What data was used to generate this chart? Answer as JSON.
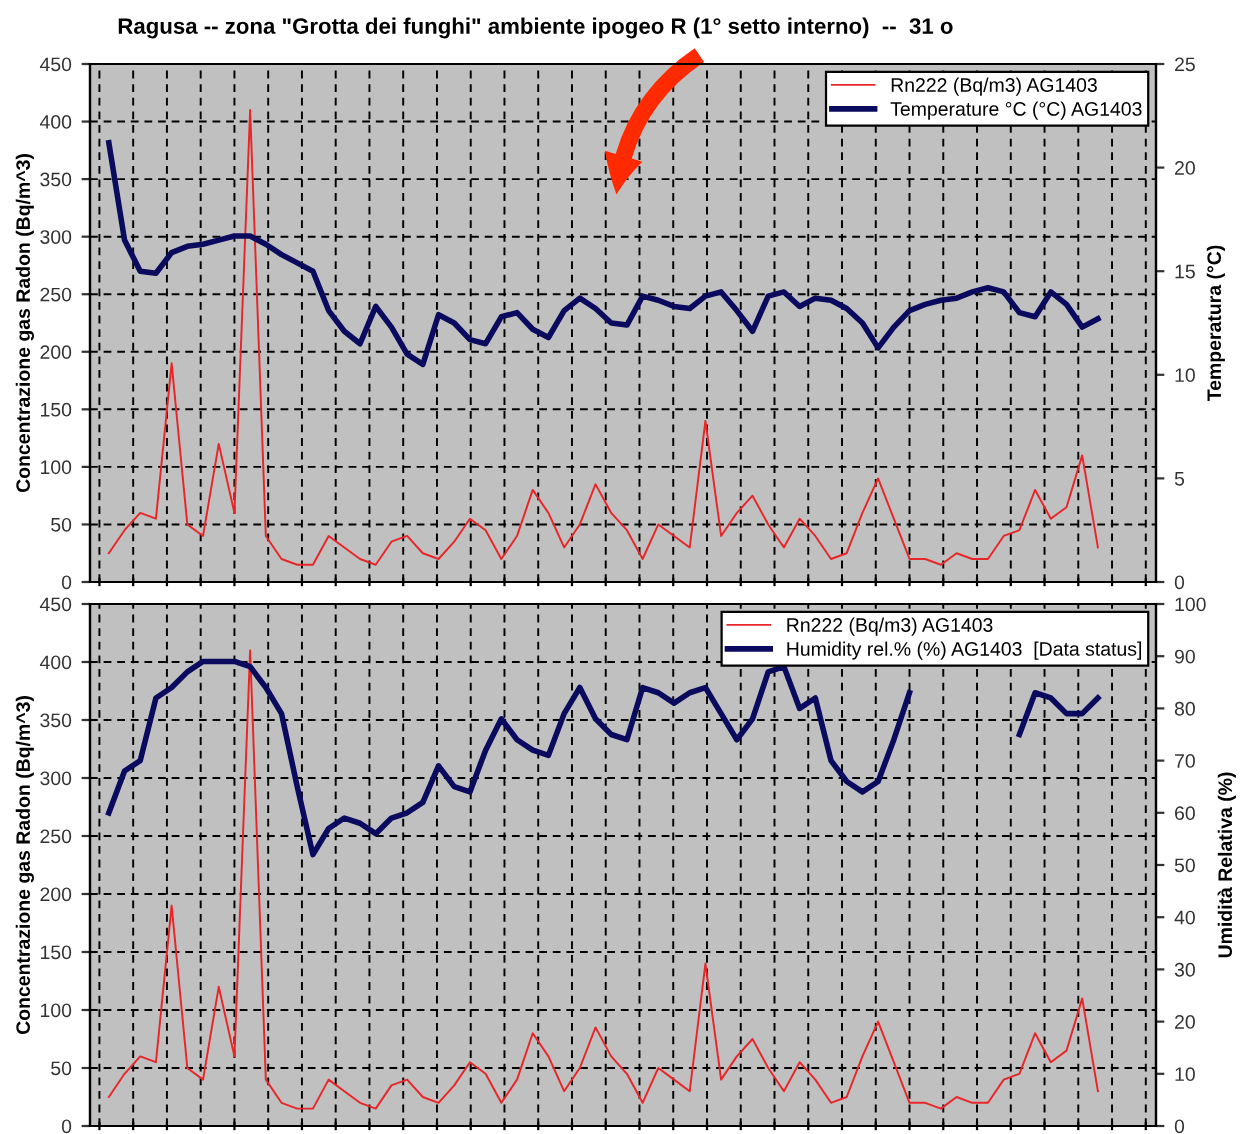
{
  "chart_data": [
    {
      "type": "line",
      "title": "Ragusa -- zona \"Grotta dei funghi\" ambiente ipogeo R (1° setto interno)  --  31 o",
      "ylabel": "Concentrazione gas Radon (Bq/m^3)",
      "y2label": "Temperatura (°C)",
      "categories": [
        null,
        null,
        null,
        null,
        null,
        null,
        null,
        null,
        null,
        null,
        null,
        null,
        null,
        null,
        null,
        null,
        null,
        null,
        null,
        null,
        null,
        null,
        null,
        null,
        null,
        null,
        null,
        null,
        null,
        null,
        null,
        null,
        null,
        null,
        null,
        null,
        null,
        null,
        null,
        null,
        null,
        null,
        null,
        null,
        null,
        null,
        null,
        null,
        null,
        null,
        null,
        null,
        null,
        null,
        null,
        null,
        null,
        null,
        null,
        null,
        null,
        null,
        null,
        null
      ],
      "series": [
        {
          "name": "Rn222 (Bq/m3) AG1403",
          "color": "#e8262a",
          "values": [
            25,
            45,
            60,
            55,
            190,
            50,
            40,
            120,
            60,
            410,
            40,
            20,
            15,
            15,
            40,
            30,
            20,
            15,
            35,
            40,
            25,
            20,
            35,
            55,
            45,
            20,
            40,
            80,
            60,
            30,
            50,
            85,
            60,
            45,
            20,
            50,
            40,
            30,
            140,
            40,
            60,
            75,
            50,
            30,
            55,
            40,
            20,
            25,
            60,
            90,
            55,
            20,
            20,
            15,
            25,
            20,
            20,
            40,
            45,
            80,
            55,
            65,
            110,
            30
          ]
        },
        {
          "name": "Temperature °C (°C) AG1403",
          "color": "#0a0a5e",
          "axis": "y2",
          "values": [
            21.2,
            16.5,
            15.0,
            14.9,
            15.9,
            16.2,
            16.3,
            16.5,
            16.7,
            16.7,
            16.3,
            15.8,
            15.4,
            15.0,
            13.1,
            12.1,
            11.5,
            13.3,
            12.3,
            11.0,
            10.5,
            12.9,
            12.5,
            11.7,
            11.5,
            12.8,
            13.0,
            12.2,
            11.8,
            13.1,
            13.7,
            13.2,
            12.5,
            12.4,
            13.8,
            13.6,
            13.3,
            13.2,
            13.8,
            14.0,
            13.1,
            12.1,
            13.8,
            14.0,
            13.3,
            13.7,
            13.6,
            13.2,
            12.5,
            11.3,
            12.3,
            13.1,
            13.4,
            13.6,
            13.7,
            14.0,
            14.2,
            14.0,
            13.0,
            12.8,
            14.0,
            13.4,
            12.3,
            12.7
          ]
        }
      ],
      "ylim": [
        0,
        450
      ],
      "yticks": [
        0,
        50,
        100,
        150,
        200,
        250,
        300,
        350,
        400,
        450
      ],
      "y2lim": [
        0,
        25
      ],
      "y2ticks": [
        0,
        5,
        10,
        15,
        20,
        25
      ],
      "grid": true,
      "legend": "top right",
      "tick_labels": "y",
      "line_style": "solid"
    },
    {
      "type": "line",
      "ylabel": "Concentrazione gas Radon (Bq/m^3)",
      "y2label": "Umidità Relativa (%)",
      "categories": [
        null,
        null,
        null,
        null,
        null,
        null,
        null,
        null,
        null,
        null,
        null,
        null,
        null,
        null,
        null,
        null,
        null,
        null,
        null,
        null,
        null,
        null,
        null,
        null,
        null,
        null,
        null,
        null,
        null,
        null,
        null,
        null,
        null,
        null,
        null,
        null,
        null,
        null,
        null,
        null,
        null,
        null,
        null,
        null,
        null,
        null,
        null,
        null,
        null,
        null,
        null,
        null,
        null,
        null,
        null,
        null,
        null,
        null,
        null,
        null,
        null,
        null,
        null,
        null
      ],
      "series": [
        {
          "name": "Rn222 (Bq/m3) AG1403",
          "color": "#e8262a",
          "values": [
            25,
            45,
            60,
            55,
            190,
            50,
            40,
            120,
            60,
            410,
            40,
            20,
            15,
            15,
            40,
            30,
            20,
            15,
            35,
            40,
            25,
            20,
            35,
            55,
            45,
            20,
            40,
            80,
            60,
            30,
            50,
            85,
            60,
            45,
            20,
            50,
            40,
            30,
            140,
            40,
            60,
            75,
            50,
            30,
            55,
            40,
            20,
            25,
            60,
            90,
            55,
            20,
            20,
            15,
            25,
            20,
            20,
            40,
            45,
            80,
            55,
            65,
            110,
            30
          ]
        },
        {
          "name": "Humidity rel.% (%) AG1403  [Data status]",
          "color": "#0a0a5e",
          "axis": "y2",
          "values": [
            60,
            68,
            70,
            82,
            84,
            87,
            89,
            89,
            89,
            88,
            84,
            79,
            65,
            52,
            57,
            59,
            58,
            56,
            59,
            60,
            62,
            69,
            65,
            64,
            72,
            78,
            74,
            72,
            71,
            79,
            84,
            78,
            75,
            74,
            84,
            83,
            81,
            83,
            84,
            79,
            74,
            78,
            87,
            88,
            80,
            82,
            70,
            66,
            64,
            66,
            74,
            83,
            null,
            null,
            null,
            null,
            null,
            null,
            75,
            83,
            82,
            79,
            79,
            82
          ]
        }
      ],
      "ylim": [
        0,
        450
      ],
      "yticks": [
        0,
        50,
        100,
        150,
        200,
        250,
        300,
        350,
        400,
        450
      ],
      "y2lim": [
        0,
        100
      ],
      "y2ticks": [
        0,
        10,
        20,
        30,
        40,
        50,
        60,
        70,
        80,
        90,
        100
      ],
      "grid": true,
      "legend": "top right",
      "tick_labels": "y",
      "line_style": "solid"
    }
  ]
}
